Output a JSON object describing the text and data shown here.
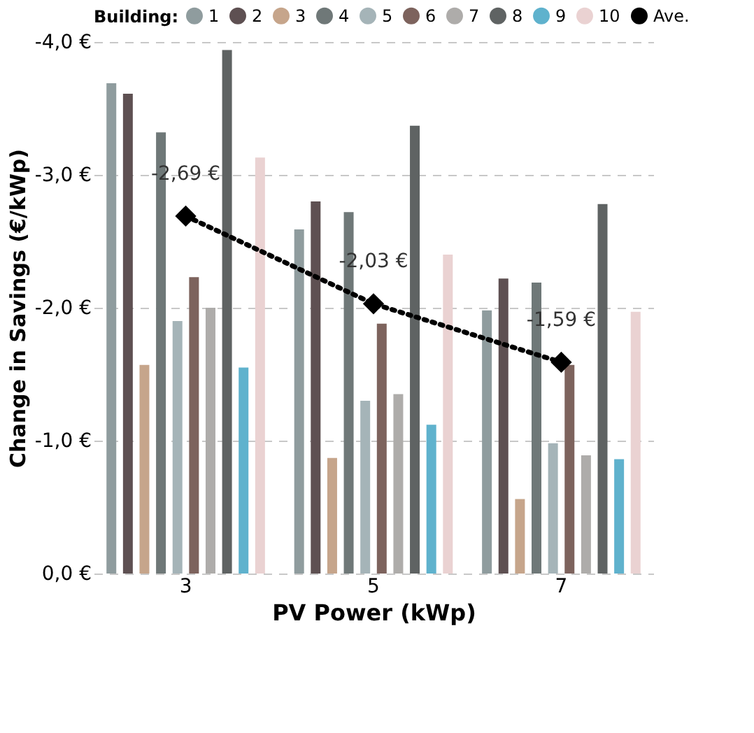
{
  "chart_data": {
    "type": "bar",
    "xlabel": "PV Power (kWp)",
    "ylabel": "Change in Savings (€/kWp)",
    "legend_title": "Building:",
    "legend": "top",
    "categories": [
      "3",
      "5",
      "7"
    ],
    "ylim": [
      0,
      -4
    ],
    "yticks": [
      {
        "value": 0,
        "label": "0,0 €"
      },
      {
        "value": -1,
        "label": "-1,0 €"
      },
      {
        "value": -2,
        "label": "-2,0 €"
      },
      {
        "value": -3,
        "label": "-3,0 €"
      },
      {
        "value": -4,
        "label": "-4,0 €"
      }
    ],
    "grid": "y",
    "series": [
      {
        "name": "1",
        "color": "#8f9c9e",
        "values": [
          -3.69,
          -2.59,
          -1.98
        ]
      },
      {
        "name": "2",
        "color": "#5e5052",
        "values": [
          -3.61,
          -2.8,
          -2.22
        ]
      },
      {
        "name": "3",
        "color": "#c6a58b",
        "values": [
          -1.57,
          -0.87,
          -0.56
        ]
      },
      {
        "name": "4",
        "color": "#6f7878",
        "values": [
          -3.32,
          -2.72,
          -2.19
        ]
      },
      {
        "name": "5",
        "color": "#a5b4b8",
        "values": [
          -1.9,
          -1.3,
          -0.98
        ]
      },
      {
        "name": "6",
        "color": "#7d635d",
        "values": [
          -2.23,
          -1.88,
          -1.57
        ]
      },
      {
        "name": "7",
        "color": "#aeacaa",
        "values": [
          -2.0,
          -1.35,
          -0.89
        ]
      },
      {
        "name": "8",
        "color": "#5f6363",
        "values": [
          -3.94,
          -3.37,
          -2.78
        ]
      },
      {
        "name": "9",
        "color": "#5fb2cd",
        "values": [
          -1.55,
          -1.12,
          -0.86
        ]
      },
      {
        "name": "10",
        "color": "#ead2d2",
        "values": [
          -3.13,
          -2.4,
          -1.97
        ]
      },
      {
        "name": "Ave.",
        "type": "line",
        "color": "#000000",
        "line_style": "dotted",
        "marker": "diamond",
        "values": [
          -2.69,
          -2.03,
          -1.59
        ],
        "value_labels": [
          "-2,69 €",
          "-2,03 €",
          "-1,59 €"
        ]
      }
    ]
  }
}
